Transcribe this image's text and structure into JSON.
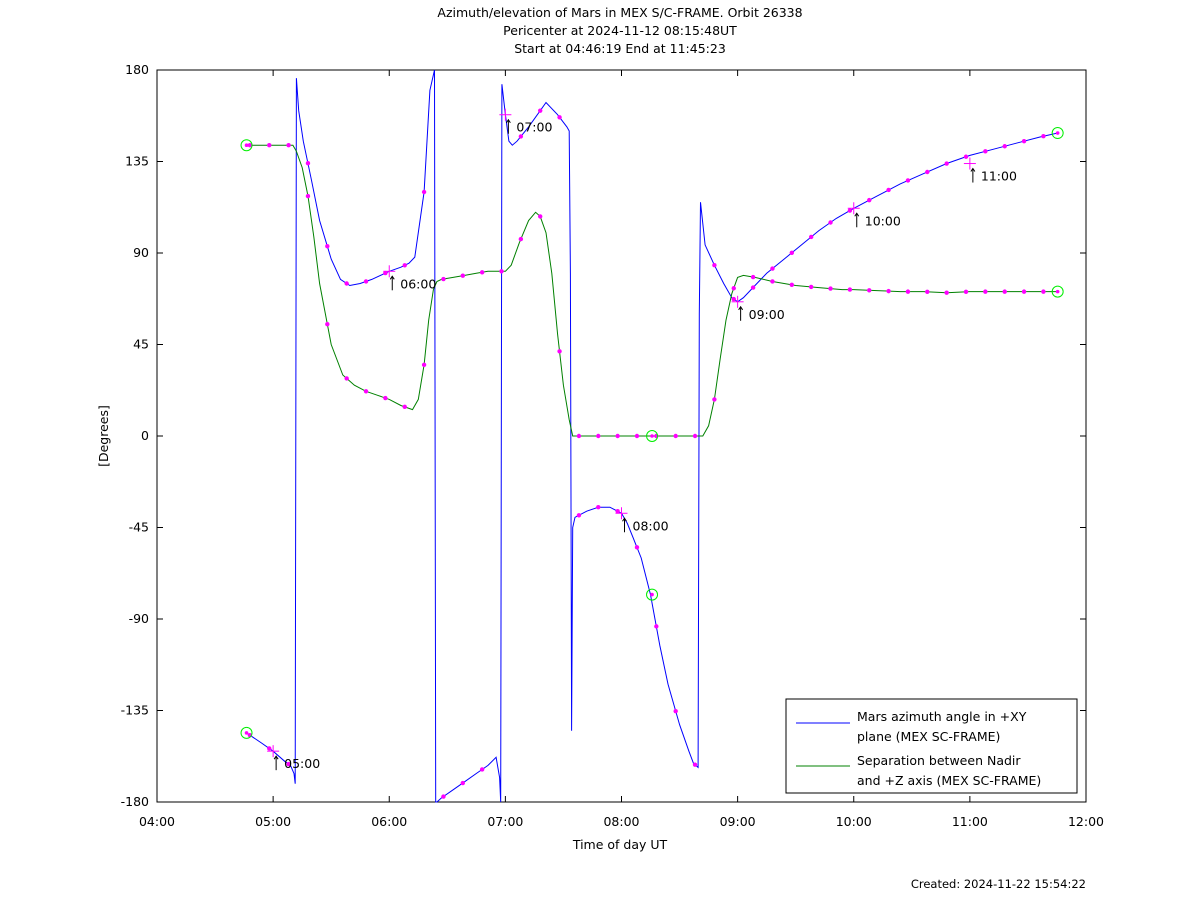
{
  "header": {
    "title": "Azimuth/elevation of Mars in MEX S/C-FRAME.  Orbit 26338",
    "line2": "Pericenter at 2024-11-12 08:15:48UT",
    "line3": "Start at 04:46:19 End at 11:45:23"
  },
  "footer": {
    "created": "Created: 2024-11-22 15:54:22"
  },
  "colors": {
    "azimuth": "#0000ff",
    "separation": "#008000",
    "markers": "#ff00ff",
    "endpoints": "#00ee00"
  },
  "chart_data": {
    "type": "line",
    "xlabel": "Time of day UT",
    "ylabel": "[Degrees]",
    "xlim": [
      4.0,
      12.0
    ],
    "ylim": [
      -180,
      180
    ],
    "x_ticks": [
      {
        "v": 4,
        "label": "04:00"
      },
      {
        "v": 5,
        "label": "05:00"
      },
      {
        "v": 6,
        "label": "06:00"
      },
      {
        "v": 7,
        "label": "07:00"
      },
      {
        "v": 8,
        "label": "08:00"
      },
      {
        "v": 9,
        "label": "09:00"
      },
      {
        "v": 10,
        "label": "10:00"
      },
      {
        "v": 11,
        "label": "11:00"
      },
      {
        "v": 12,
        "label": "12:00"
      }
    ],
    "y_ticks": [
      {
        "v": 180,
        "label": "180"
      },
      {
        "v": 135,
        "label": "135"
      },
      {
        "v": 90,
        "label": "90"
      },
      {
        "v": 45,
        "label": "45"
      },
      {
        "v": 0,
        "label": "0"
      },
      {
        "v": -45,
        "label": "-45"
      },
      {
        "v": -90,
        "label": "-90"
      },
      {
        "v": -135,
        "label": "-135"
      },
      {
        "v": -180,
        "label": "-180"
      }
    ],
    "legend": {
      "placement": "bottom-right",
      "entries": [
        {
          "series": "azimuth",
          "line1": "Mars azimuth angle in +XY",
          "line2": "plane (MEX SC-FRAME)"
        },
        {
          "series": "separation",
          "line1": "Separation between Nadir",
          "line2": "and +Z axis (MEX SC-FRAME)"
        }
      ]
    },
    "series": [
      {
        "key": "azimuth",
        "name": "Mars azimuth angle in +XY plane (MEX SC-FRAME)",
        "x": [
          4.771,
          4.9,
          5.0,
          5.1,
          5.15,
          5.18,
          5.19,
          5.2,
          5.22,
          5.26,
          5.33,
          5.4,
          5.5,
          5.58,
          5.66,
          5.75,
          5.85,
          6.0,
          6.1,
          6.17,
          6.22,
          6.3,
          6.35,
          6.39,
          6.4,
          6.41,
          6.45,
          6.55,
          6.65,
          6.75,
          6.85,
          6.92,
          6.95,
          6.96,
          6.97,
          7.0,
          7.03,
          7.06,
          7.1,
          7.2,
          7.3,
          7.35,
          7.45,
          7.53,
          7.55,
          7.56,
          7.57,
          7.58,
          7.6,
          7.7,
          7.8,
          7.9,
          8.0,
          8.05,
          8.1,
          8.17,
          8.25,
          8.33,
          8.4,
          8.5,
          8.58,
          8.62,
          8.66,
          8.67,
          8.68,
          8.72,
          8.8,
          8.88,
          8.95,
          9.0,
          9.05,
          9.15,
          9.25,
          9.4,
          9.55,
          9.7,
          9.85,
          10.0,
          10.2,
          10.4,
          10.6,
          10.8,
          11.0,
          11.2,
          11.4,
          11.6,
          11.756
        ],
        "y": [
          -146,
          -151,
          -155,
          -160,
          -162,
          -166,
          -171,
          176,
          160,
          145,
          126,
          106,
          87,
          77,
          74,
          75,
          77,
          81,
          83,
          85,
          88,
          120,
          170,
          180,
          -180,
          -180,
          -178,
          -174,
          -170,
          -166,
          -162,
          -158,
          -168,
          -180,
          173,
          158,
          145,
          143,
          145,
          152,
          160,
          164,
          158,
          152,
          150,
          80,
          -145,
          -45,
          -40,
          -37,
          -35,
          -35,
          -38,
          -43,
          -50,
          -60,
          -78,
          -103,
          -122,
          -142,
          -155,
          -161,
          -163,
          60,
          115,
          94,
          84,
          75,
          68,
          66,
          68,
          74,
          80,
          87,
          94,
          101,
          107,
          112,
          118,
          124,
          129,
          134,
          138,
          141,
          144,
          147,
          149
        ]
      },
      {
        "key": "separation",
        "name": "Separation between Nadir and +Z axis (MEX SC-FRAME)",
        "x": [
          4.771,
          4.9,
          5.0,
          5.1,
          5.17,
          5.2,
          5.25,
          5.3,
          5.35,
          5.4,
          5.5,
          5.6,
          5.7,
          5.8,
          5.9,
          6.0,
          6.1,
          6.2,
          6.25,
          6.3,
          6.34,
          6.38,
          6.41,
          6.45,
          6.55,
          6.65,
          6.75,
          6.85,
          6.95,
          7.0,
          7.05,
          7.12,
          7.2,
          7.26,
          7.3,
          7.35,
          7.4,
          7.45,
          7.5,
          7.55,
          7.58,
          7.62,
          7.7,
          7.8,
          7.9,
          8.0,
          8.1,
          8.2,
          8.26,
          8.3,
          8.4,
          8.5,
          8.6,
          8.67,
          8.7,
          8.75,
          8.8,
          8.85,
          8.9,
          8.95,
          9.0,
          9.05,
          9.15,
          9.3,
          9.5,
          9.7,
          9.9,
          10.0,
          10.2,
          10.4,
          10.6,
          10.8,
          11.0,
          11.2,
          11.4,
          11.6,
          11.756
        ],
        "y": [
          143,
          143,
          143,
          143,
          143,
          140,
          132,
          118,
          98,
          75,
          45,
          30,
          25,
          22,
          20,
          18,
          15,
          13,
          18,
          35,
          57,
          72,
          76,
          77,
          78,
          79,
          80,
          81,
          81,
          81,
          84,
          95,
          106,
          110,
          108,
          100,
          80,
          50,
          25,
          8,
          0,
          0,
          0,
          0,
          0,
          0,
          0,
          0,
          0,
          0,
          0,
          0,
          0,
          0,
          0,
          5,
          18,
          38,
          57,
          70,
          78,
          79,
          78,
          76,
          74,
          73,
          72,
          72,
          71.5,
          71,
          71,
          70.5,
          71,
          71,
          71,
          71,
          71
        ]
      }
    ],
    "time_labels": [
      {
        "label": "05:00",
        "series": "azimuth",
        "x": 5.0,
        "y": -155
      },
      {
        "label": "06:00",
        "series": "azimuth",
        "x": 6.0,
        "y": 81
      },
      {
        "label": "07:00",
        "series": "azimuth",
        "x": 7.0,
        "y": 158
      },
      {
        "label": "08:00",
        "series": "azimuth",
        "x": 8.0,
        "y": -38
      },
      {
        "label": "09:00",
        "series": "azimuth",
        "x": 9.0,
        "y": 66
      },
      {
        "label": "10:00",
        "series": "azimuth",
        "x": 10.0,
        "y": 112
      },
      {
        "label": "11:00",
        "series": "azimuth",
        "x": 11.0,
        "y": 134
      }
    ],
    "endpoint_markers": [
      {
        "series": "azimuth",
        "x": 4.771,
        "y": -146
      },
      {
        "series": "azimuth",
        "x": 11.756,
        "y": 149
      },
      {
        "series": "separation",
        "x": 4.771,
        "y": 143
      },
      {
        "series": "separation",
        "x": 11.756,
        "y": 71
      },
      {
        "series": "azimuth",
        "x": 8.263,
        "y": -78
      },
      {
        "series": "separation",
        "x": 8.263,
        "y": 0
      }
    ]
  }
}
